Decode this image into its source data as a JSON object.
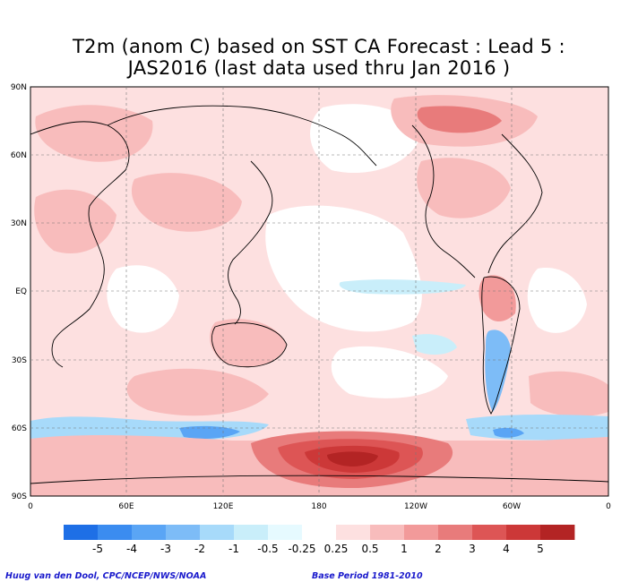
{
  "title": {
    "line1": "T2m (anom C) based on SST CA Forecast : Lead 5 :",
    "line2": "JAS2016 (last data used thru Jan 2016 )"
  },
  "map": {
    "lat_ticks": [
      "90N",
      "60N",
      "30N",
      "EQ",
      "30S",
      "60S",
      "90S"
    ],
    "lon_ticks": [
      "0",
      "60E",
      "120E",
      "180",
      "120W",
      "60W",
      "0"
    ],
    "projection": "equirectangular, 0 to 360 longitude"
  },
  "colorbar": {
    "boundaries": [
      "-5",
      "-4",
      "-3",
      "-2",
      "-1",
      "-0.5",
      "-0.25",
      "0.25",
      "0.5",
      "1",
      "2",
      "3",
      "4",
      "5"
    ],
    "colors": [
      "#1e6fe6",
      "#3b8cf0",
      "#5aa5f5",
      "#7dbcf7",
      "#a7dafa",
      "#c9eefa",
      "#e6faff",
      "#ffffff",
      "#fde0e0",
      "#f8bcbc",
      "#f29a9a",
      "#e87b7b",
      "#dd5555",
      "#cc3838",
      "#b32424"
    ]
  },
  "footer": {
    "credit": "Huug van den Dool, CPC/NCEP/NWS/NOAA",
    "base_period": "Base Period 1981-2010"
  }
}
